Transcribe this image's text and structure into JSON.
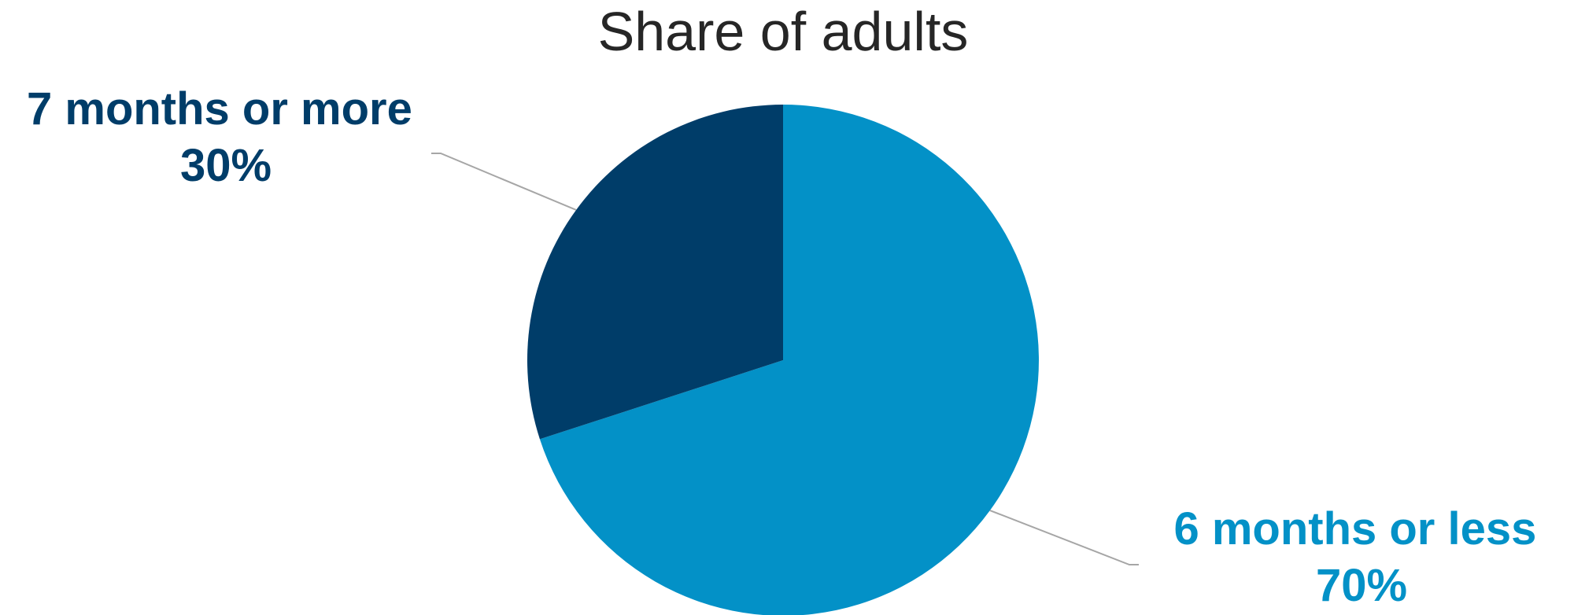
{
  "chart_data": {
    "type": "pie",
    "title": "Share of adults",
    "slices": [
      {
        "label": "6 months or less",
        "value_label": "70%",
        "value": 70,
        "color": "#0391C7"
      },
      {
        "label": "7 months or more",
        "value_label": "30%",
        "value": 30,
        "color": "#003D69"
      }
    ],
    "leader_line_color": "#A6A6A6",
    "legend": "none"
  }
}
